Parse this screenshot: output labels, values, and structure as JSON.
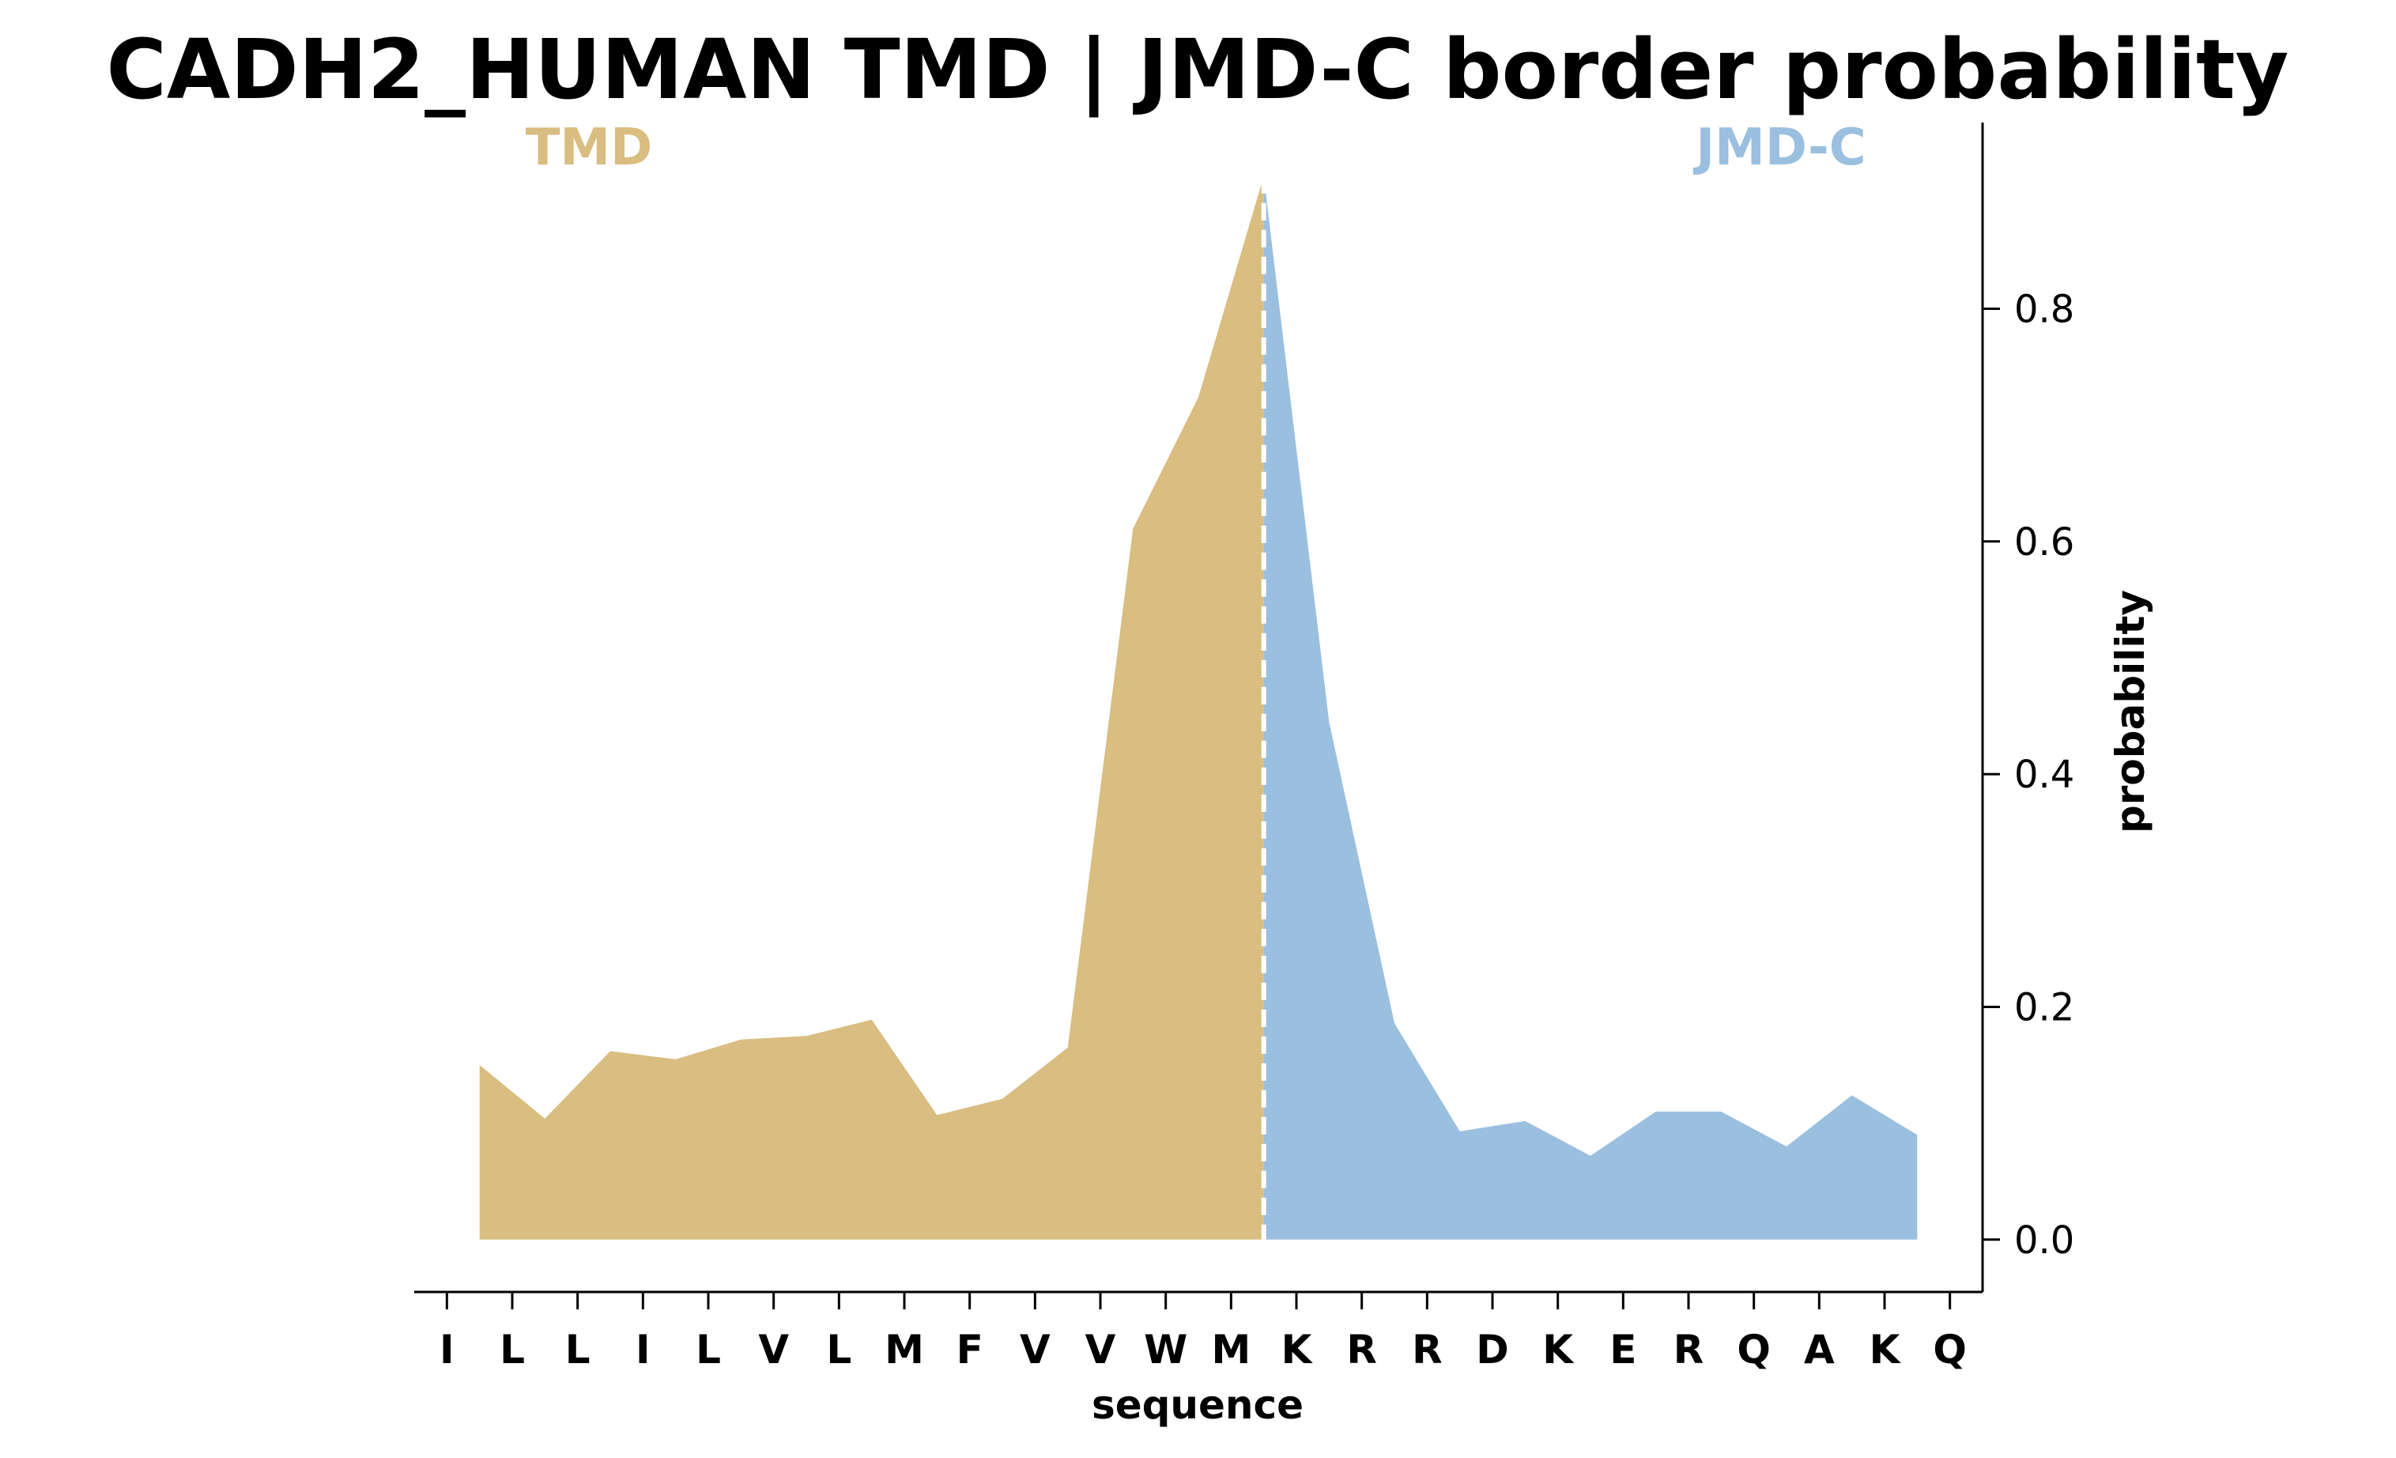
{
  "chart_data": {
    "type": "area",
    "title": "CADH2_HUMAN TMD | JMD-C border probability",
    "xlabel": "sequence",
    "ylabel": "probability",
    "categories": [
      "I",
      "L",
      "L",
      "I",
      "L",
      "V",
      "L",
      "M",
      "F",
      "V",
      "V",
      "W",
      "M",
      "K",
      "R",
      "R",
      "D",
      "K",
      "E",
      "R",
      "Q",
      "A",
      "K",
      "Q"
    ],
    "regions": [
      {
        "name": "TMD",
        "color": "#d9bd81"
      },
      {
        "name": "JMD-C",
        "color": "#9bbfdf"
      }
    ],
    "series": [
      {
        "region": "TMD",
        "color": "#d9bd81",
        "x": [
          0.5,
          1.5,
          2.5,
          3.5,
          4.5,
          5.5,
          6.5,
          7.5,
          8.5,
          9.5,
          10.5,
          11.5,
          12.5
        ],
        "values": [
          0.15,
          0.104,
          0.162,
          0.155,
          0.172,
          0.175,
          0.189,
          0.107,
          0.121,
          0.165,
          0.611,
          0.724,
          0.914
        ]
      },
      {
        "region": "JMD-C",
        "color": "#9bbfdf",
        "x": [
          12.5,
          13.5,
          14.5,
          15.5,
          16.5,
          17.5,
          18.5,
          19.5,
          20.5,
          21.5,
          22.5
        ],
        "values": [
          0.914,
          0.445,
          0.186,
          0.093,
          0.102,
          0.072,
          0.11,
          0.11,
          0.08,
          0.124,
          0.09
        ]
      }
    ],
    "border_x": 12.5,
    "yticks": [
      0.0,
      0.2,
      0.4,
      0.6,
      0.8
    ],
    "ytick_labels": [
      "0.0",
      "0.2",
      "0.4",
      "0.6",
      "0.8"
    ],
    "ylim": [
      -0.045,
      0.96
    ],
    "xlim": [
      -0.5,
      23.5
    ],
    "y_axis_side": "right",
    "grid": false
  }
}
